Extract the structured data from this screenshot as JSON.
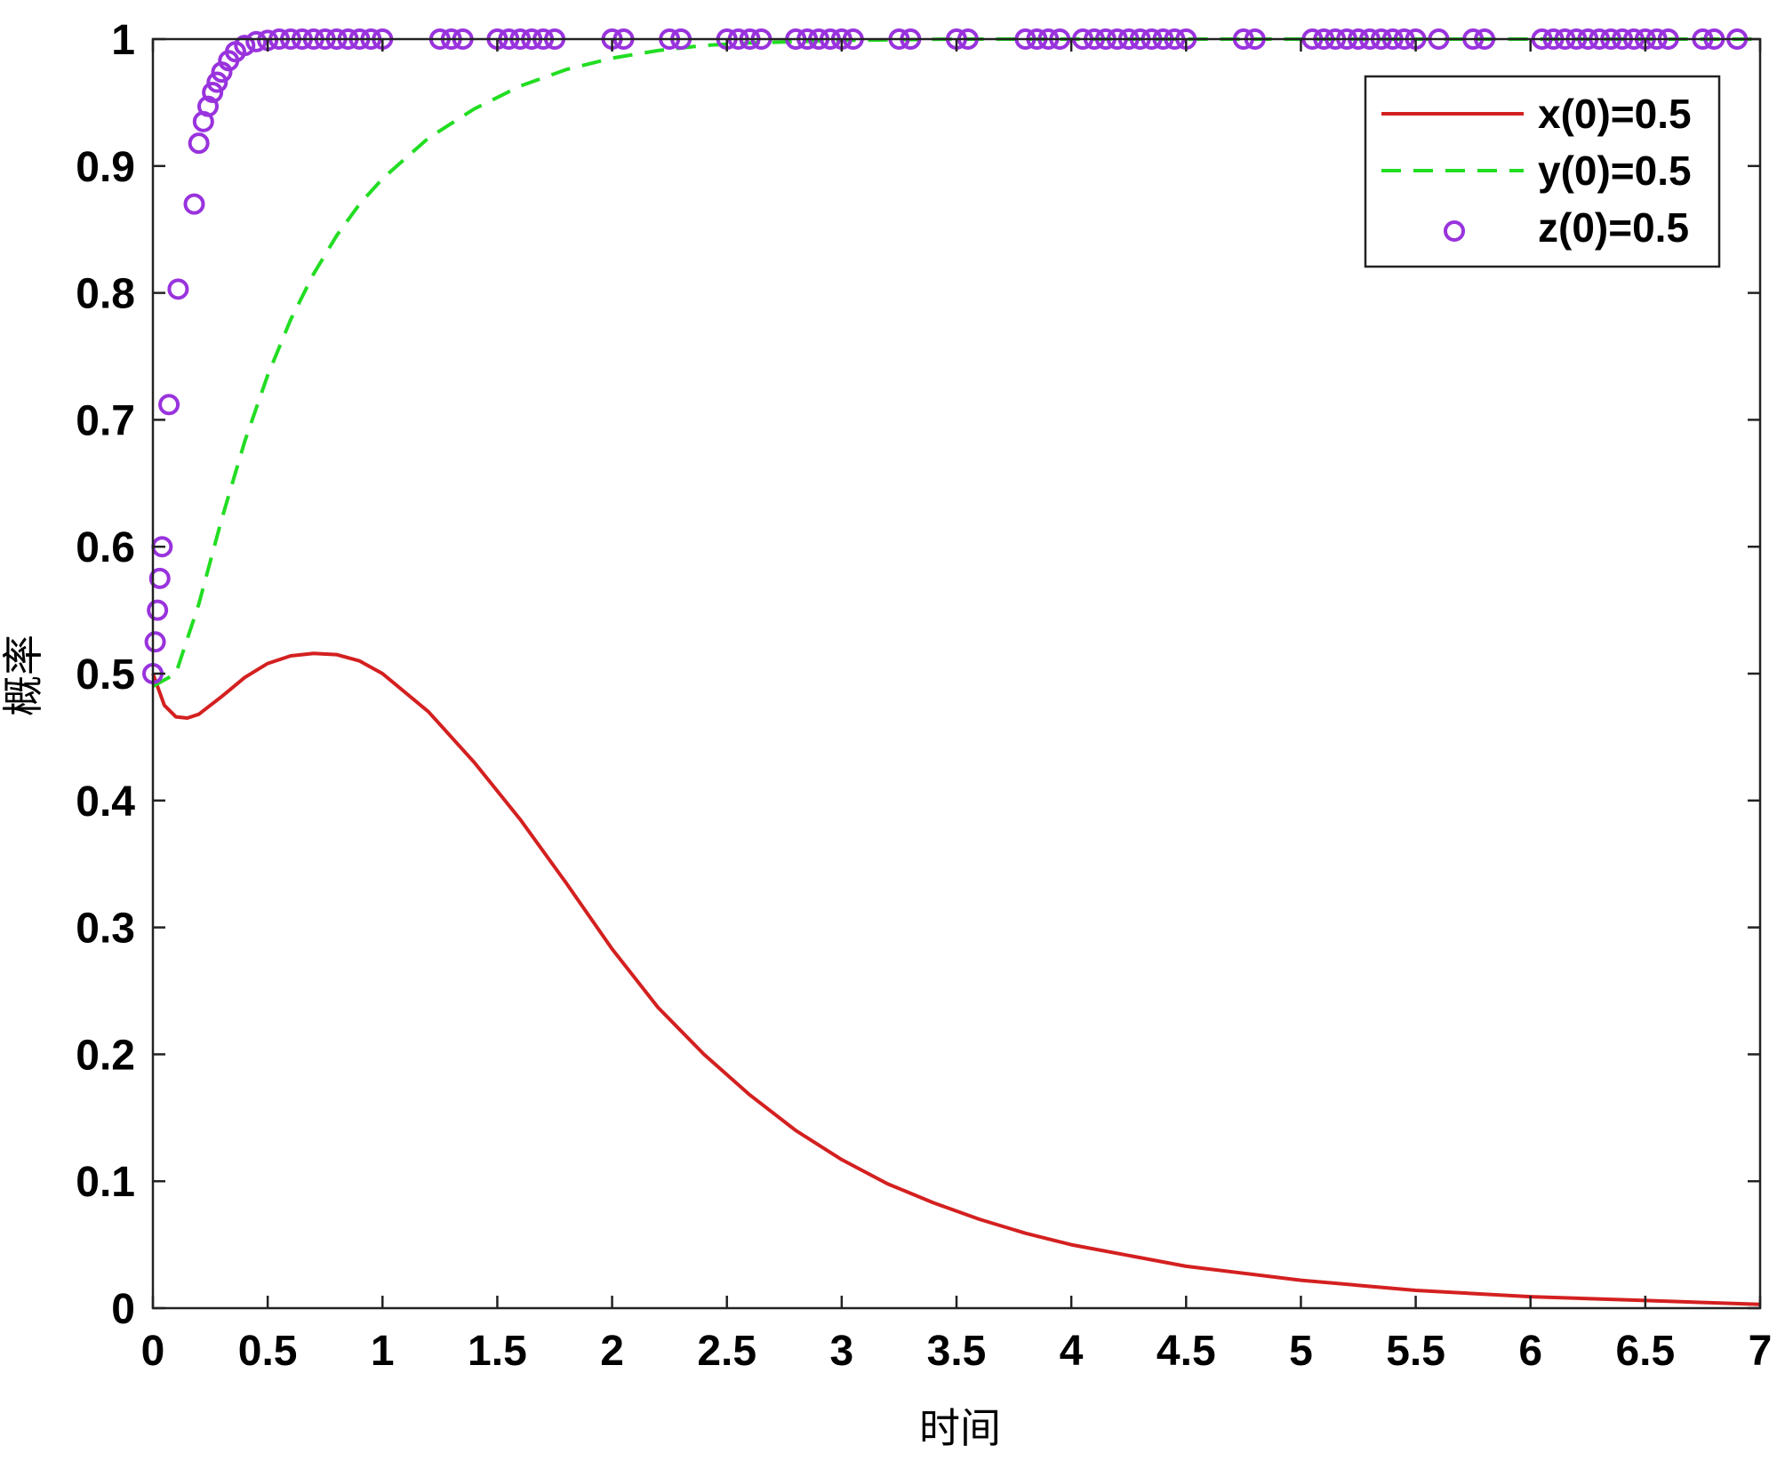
{
  "chart_data": {
    "type": "line",
    "title": "",
    "xlabel": "时间",
    "ylabel": "概率",
    "xlim": [
      0,
      7
    ],
    "ylim": [
      0,
      1
    ],
    "grid": false,
    "legend_position": "top-right",
    "xticks": [
      "0",
      "0.5",
      "1",
      "1.5",
      "2",
      "2.5",
      "3",
      "3.5",
      "4",
      "4.5",
      "5",
      "5.5",
      "6",
      "6.5",
      "7"
    ],
    "yticks": [
      "0",
      "0.1",
      "0.2",
      "0.3",
      "0.4",
      "0.5",
      "0.6",
      "0.7",
      "0.8",
      "0.9",
      "1"
    ],
    "series": [
      {
        "name": "x(0)=0.5",
        "style": "solid",
        "marker": "none",
        "color": "#d42020",
        "x": [
          0,
          0.05,
          0.1,
          0.15,
          0.2,
          0.3,
          0.4,
          0.5,
          0.6,
          0.7,
          0.8,
          0.9,
          1.0,
          1.2,
          1.4,
          1.6,
          1.8,
          2.0,
          2.2,
          2.4,
          2.6,
          2.8,
          3.0,
          3.2,
          3.4,
          3.6,
          3.8,
          4.0,
          4.5,
          5.0,
          5.5,
          6.0,
          6.5,
          7.0
        ],
        "y": [
          0.5,
          0.475,
          0.466,
          0.465,
          0.468,
          0.482,
          0.497,
          0.508,
          0.514,
          0.516,
          0.515,
          0.51,
          0.5,
          0.47,
          0.43,
          0.385,
          0.335,
          0.283,
          0.237,
          0.2,
          0.168,
          0.14,
          0.117,
          0.098,
          0.083,
          0.07,
          0.059,
          0.05,
          0.033,
          0.022,
          0.014,
          0.009,
          0.006,
          0.003
        ]
      },
      {
        "name": "y(0)=0.5",
        "style": "dashed",
        "marker": "none",
        "color": "#22dd22",
        "x": [
          0,
          0.1,
          0.2,
          0.3,
          0.4,
          0.5,
          0.6,
          0.7,
          0.8,
          0.9,
          1.0,
          1.2,
          1.4,
          1.6,
          1.8,
          2.0,
          2.2,
          2.4,
          2.6,
          3.0,
          3.5,
          4.0,
          5.0,
          6.0,
          7.0
        ],
        "y": [
          0.49,
          0.5,
          0.555,
          0.622,
          0.683,
          0.735,
          0.779,
          0.815,
          0.845,
          0.87,
          0.89,
          0.922,
          0.945,
          0.963,
          0.976,
          0.985,
          0.991,
          0.995,
          0.997,
          0.999,
          1.0,
          1.0,
          1.0,
          1.0,
          1.0
        ]
      },
      {
        "name": "z(0)=0.5",
        "style": "none",
        "marker": "circle",
        "color": "#9933dd",
        "x": [
          0.0,
          0.01,
          0.02,
          0.03,
          0.04,
          0.07,
          0.11,
          0.18,
          0.2,
          0.22,
          0.24,
          0.26,
          0.28,
          0.3,
          0.33,
          0.36,
          0.4,
          0.45,
          0.5,
          0.55,
          0.6,
          0.65,
          0.7,
          0.75,
          0.8,
          0.85,
          0.9,
          0.95,
          1.0,
          1.25,
          1.3,
          1.35,
          1.5,
          1.55,
          1.6,
          1.65,
          1.7,
          1.75,
          2.0,
          2.05,
          2.25,
          2.3,
          2.5,
          2.55,
          2.6,
          2.65,
          2.8,
          2.85,
          2.9,
          2.95,
          3.0,
          3.05,
          3.25,
          3.3,
          3.5,
          3.55,
          3.8,
          3.85,
          3.9,
          3.95,
          4.05,
          4.1,
          4.15,
          4.2,
          4.25,
          4.3,
          4.35,
          4.4,
          4.45,
          4.5,
          4.75,
          4.8,
          5.05,
          5.1,
          5.15,
          5.2,
          5.25,
          5.3,
          5.35,
          5.4,
          5.45,
          5.5,
          5.6,
          5.75,
          5.8,
          6.05,
          6.1,
          6.15,
          6.2,
          6.25,
          6.3,
          6.35,
          6.4,
          6.45,
          6.5,
          6.55,
          6.6,
          6.75,
          6.8,
          6.9
        ],
        "y": [
          0.5,
          0.525,
          0.55,
          0.575,
          0.6,
          0.712,
          0.803,
          0.87,
          0.918,
          0.935,
          0.947,
          0.958,
          0.966,
          0.974,
          0.983,
          0.99,
          0.995,
          0.998,
          0.999,
          1.0,
          1.0,
          1.0,
          1.0,
          1.0,
          1.0,
          1.0,
          1.0,
          1.0,
          1.0,
          1.0,
          1.0,
          1.0,
          1.0,
          1.0,
          1.0,
          1.0,
          1.0,
          1.0,
          1.0,
          1.0,
          1.0,
          1.0,
          1.0,
          1.0,
          1.0,
          1.0,
          1.0,
          1.0,
          1.0,
          1.0,
          1.0,
          1.0,
          1.0,
          1.0,
          1.0,
          1.0,
          1.0,
          1.0,
          1.0,
          1.0,
          1.0,
          1.0,
          1.0,
          1.0,
          1.0,
          1.0,
          1.0,
          1.0,
          1.0,
          1.0,
          1.0,
          1.0,
          1.0,
          1.0,
          1.0,
          1.0,
          1.0,
          1.0,
          1.0,
          1.0,
          1.0,
          1.0,
          1.0,
          1.0,
          1.0,
          1.0,
          1.0,
          1.0,
          1.0,
          1.0,
          1.0,
          1.0,
          1.0,
          1.0,
          1.0,
          1.0,
          1.0,
          1.0,
          1.0,
          1.0
        ]
      }
    ]
  }
}
